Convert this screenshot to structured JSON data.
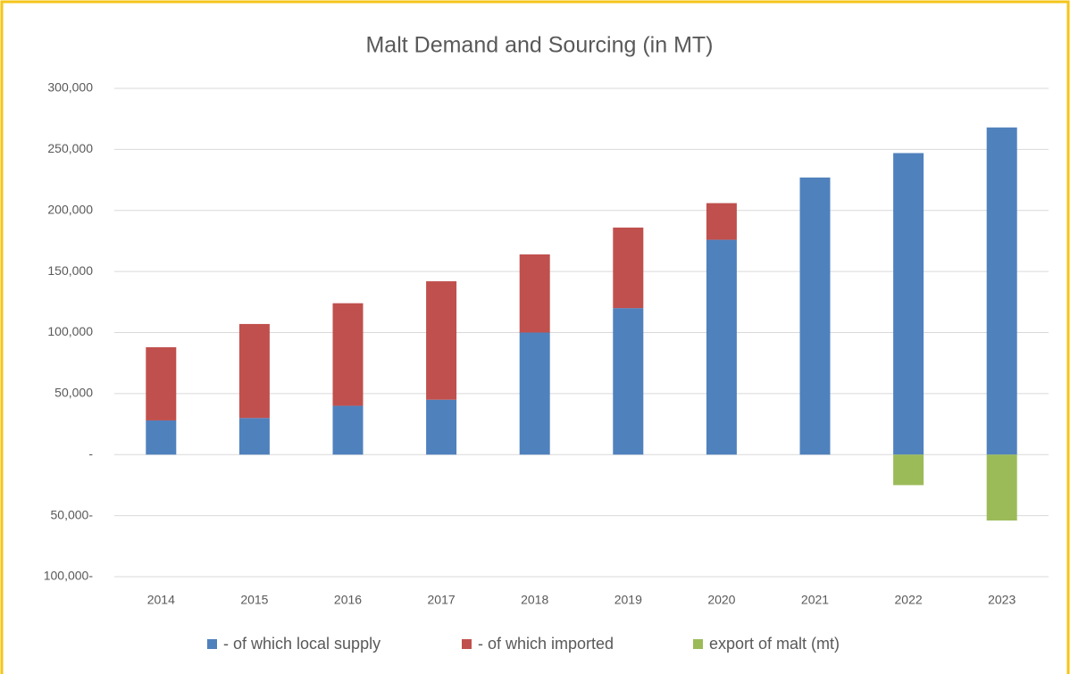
{
  "chart_data": {
    "type": "stacked_bar",
    "title": "Malt Demand and Sourcing (in MT)",
    "categories": [
      "2014",
      "2015",
      "2016",
      "2017",
      "2018",
      "2019",
      "2020",
      "2021",
      "2022",
      "2023"
    ],
    "series": [
      {
        "name": "- of which local supply",
        "color": "#4f81bd",
        "values": [
          28000,
          30000,
          40000,
          45000,
          100000,
          120000,
          176000,
          227000,
          247000,
          268000
        ]
      },
      {
        "name": "- of which imported",
        "color": "#c0504d",
        "values": [
          60000,
          77000,
          84000,
          97000,
          64000,
          66000,
          30000,
          null,
          null,
          null
        ]
      },
      {
        "name": "export of malt (mt)",
        "color": "#9bbb59",
        "values": [
          null,
          null,
          null,
          null,
          null,
          null,
          null,
          null,
          -25000,
          -54000
        ]
      }
    ],
    "ylim": [
      -100000,
      300000
    ],
    "yticks": [
      {
        "value": -100000,
        "label": "100,000-"
      },
      {
        "value": -50000,
        "label": "50,000-"
      },
      {
        "value": 0,
        "label": "-"
      },
      {
        "value": 50000,
        "label": "50,000"
      },
      {
        "value": 100000,
        "label": "100,000"
      },
      {
        "value": 150000,
        "label": "150,000"
      },
      {
        "value": 200000,
        "label": "200,000"
      },
      {
        "value": 250000,
        "label": "250,000"
      },
      {
        "value": 300000,
        "label": "300,000"
      }
    ],
    "grid": true,
    "legend": "bottom"
  }
}
